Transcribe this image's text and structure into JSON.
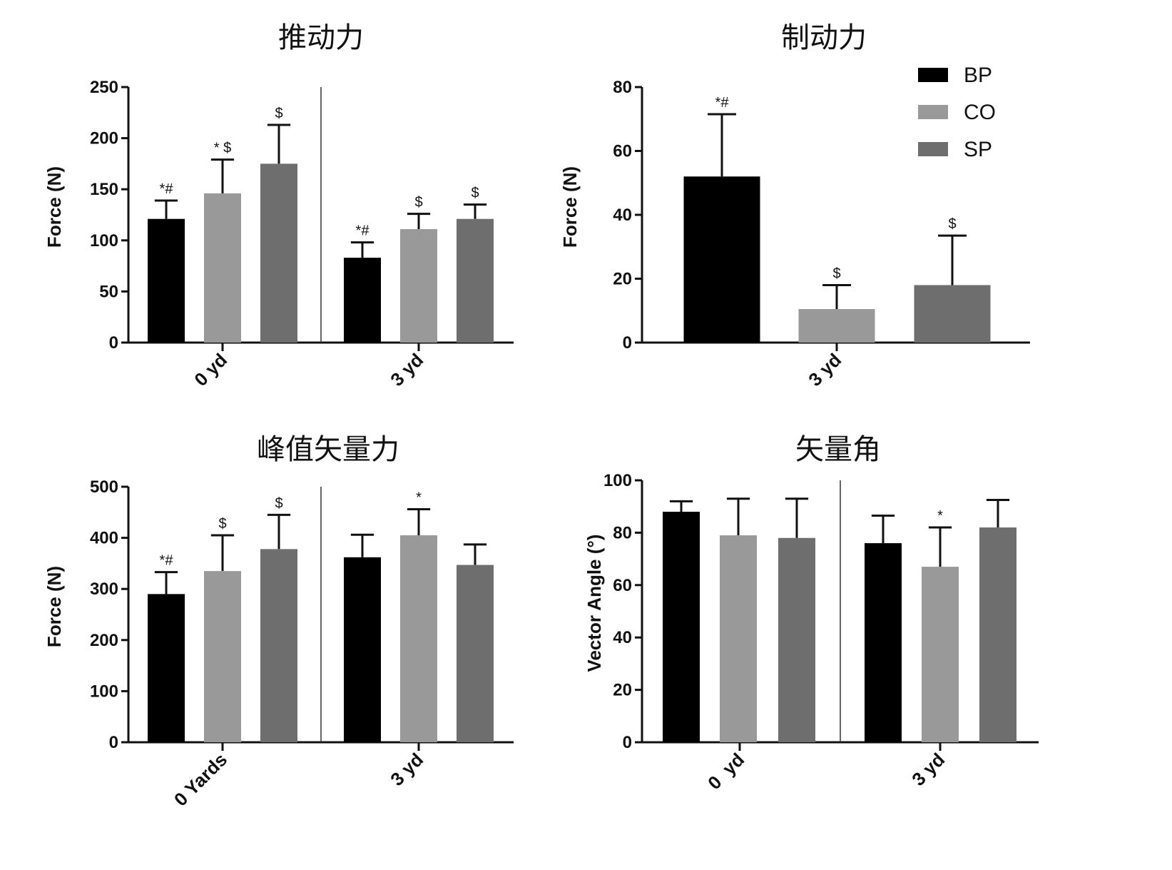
{
  "legend": [
    {
      "name": "BP",
      "color": "#000000"
    },
    {
      "name": "CO",
      "color": "#999999"
    },
    {
      "name": "SP",
      "color": "#6e6e6e"
    }
  ],
  "chart_data": [
    {
      "type": "bar",
      "title": "推动力",
      "ylabel": "Force (N)",
      "ylim": [
        0,
        250
      ],
      "yticks": [
        0,
        50,
        100,
        150,
        200,
        250
      ],
      "categories": [
        "0 yd",
        "3 yd"
      ],
      "series": [
        {
          "name": "BP",
          "values": [
            121,
            83
          ],
          "errors": [
            18,
            15
          ],
          "annotations": [
            "*#",
            "*#"
          ]
        },
        {
          "name": "CO",
          "values": [
            146,
            111
          ],
          "errors": [
            33,
            15
          ],
          "annotations": [
            "* $",
            "$"
          ]
        },
        {
          "name": "SP",
          "values": [
            175,
            121
          ],
          "errors": [
            38,
            14
          ],
          "annotations": [
            "$",
            "$"
          ]
        }
      ]
    },
    {
      "type": "bar",
      "title": "制动力",
      "ylabel": "Force (N)",
      "ylim": [
        0,
        80
      ],
      "yticks": [
        0,
        20,
        40,
        60,
        80
      ],
      "categories": [
        "3 yd"
      ],
      "series": [
        {
          "name": "BP",
          "values": [
            52
          ],
          "errors": [
            19.5
          ],
          "annotations": [
            "*#"
          ]
        },
        {
          "name": "CO",
          "values": [
            10.5
          ],
          "errors": [
            7.5
          ],
          "annotations": [
            "$"
          ]
        },
        {
          "name": "SP",
          "values": [
            18
          ],
          "errors": [
            15.5
          ],
          "annotations": [
            "$"
          ]
        }
      ]
    },
    {
      "type": "bar",
      "title": "峰值矢量力",
      "ylabel": "Force (N)",
      "ylim": [
        0,
        500
      ],
      "yticks": [
        0,
        100,
        200,
        300,
        400,
        500
      ],
      "categories": [
        "0 Yards",
        "3 yd"
      ],
      "series": [
        {
          "name": "BP",
          "values": [
            290,
            362
          ],
          "errors": [
            43,
            44
          ],
          "annotations": [
            "*#",
            ""
          ]
        },
        {
          "name": "CO",
          "values": [
            335,
            405
          ],
          "errors": [
            70,
            51
          ],
          "annotations": [
            "$",
            "*"
          ]
        },
        {
          "name": "SP",
          "values": [
            378,
            347
          ],
          "errors": [
            67,
            40
          ],
          "annotations": [
            "$",
            ""
          ]
        }
      ]
    },
    {
      "type": "bar",
      "title": "矢量角",
      "ylabel": "Vector Angle (°)",
      "ylim": [
        0,
        100
      ],
      "yticks": [
        0,
        20,
        40,
        60,
        80,
        100
      ],
      "categories": [
        "0  yd",
        "3 yd"
      ],
      "series": [
        {
          "name": "BP",
          "values": [
            88,
            76
          ],
          "errors": [
            4,
            10.5
          ],
          "annotations": [
            "",
            ""
          ]
        },
        {
          "name": "CO",
          "values": [
            79,
            67
          ],
          "errors": [
            14,
            15
          ],
          "annotations": [
            "",
            "*"
          ]
        },
        {
          "name": "SP",
          "values": [
            78,
            82
          ],
          "errors": [
            15,
            10.5
          ],
          "annotations": [
            "",
            ""
          ]
        }
      ]
    }
  ]
}
